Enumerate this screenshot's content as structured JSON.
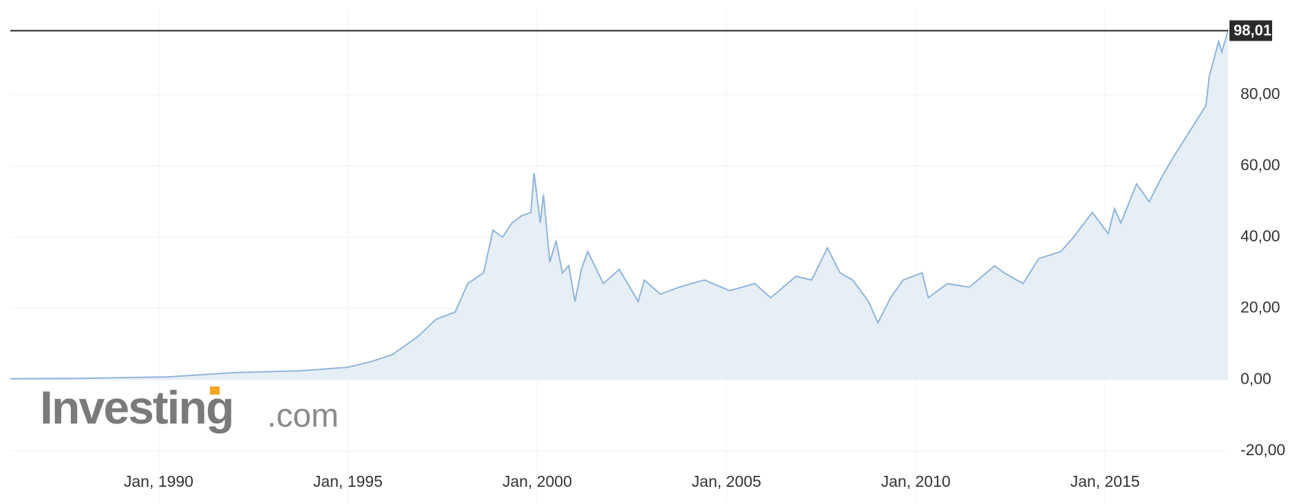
{
  "chart_data": {
    "type": "area",
    "color": "#8fb4d9",
    "fill": "#e6eef6",
    "grid": true,
    "x": [
      "1986-02",
      "1988-01",
      "1990-04",
      "1992-01",
      "1993-10",
      "1995-01",
      "1995-08",
      "1996-03",
      "1996-11",
      "1997-05",
      "1997-11",
      "1998-03",
      "1998-08",
      "1998-11",
      "1999-02",
      "1999-05",
      "1999-08",
      "1999-11",
      "1999-12",
      "2000-02",
      "2000-03",
      "2000-05",
      "2000-07",
      "2000-09",
      "2000-11",
      "2001-01",
      "2001-03",
      "2001-05",
      "2001-10",
      "2002-03",
      "2002-09",
      "2002-11",
      "2003-04",
      "2003-10",
      "2004-06",
      "2005-02",
      "2005-10",
      "2006-03",
      "2006-11",
      "2007-04",
      "2007-09",
      "2008-01",
      "2008-05",
      "2008-10",
      "2009-01",
      "2009-05",
      "2009-09",
      "2010-03",
      "2010-05",
      "2010-11",
      "2011-06",
      "2012-02",
      "2012-05",
      "2012-11",
      "2013-04",
      "2013-11",
      "2014-03",
      "2014-09",
      "2015-02",
      "2015-04",
      "2015-06",
      "2015-11",
      "2016-03",
      "2016-07",
      "2016-11",
      "2017-04",
      "2017-09",
      "2017-10",
      "2018-01",
      "2018-02",
      "2018-04"
    ],
    "values": [
      0.3,
      0.4,
      0.8,
      2,
      2.5,
      3.5,
      5,
      7,
      12,
      17,
      19,
      27,
      30,
      42,
      40,
      44,
      46,
      47,
      58,
      44,
      52,
      33,
      39,
      30,
      32,
      22,
      31,
      36,
      27,
      31,
      22,
      28,
      24,
      26,
      28,
      25,
      27,
      23,
      29,
      28,
      37,
      30,
      28,
      22,
      16,
      23,
      28,
      30,
      23,
      27,
      26,
      32,
      30,
      27,
      34,
      36,
      40,
      47,
      41,
      48,
      44,
      55,
      50,
      57,
      63,
      70,
      77,
      85,
      95,
      92,
      98.01
    ],
    "last_value": {
      "value": 98.01,
      "label": "98,01"
    },
    "xlim": [
      "1986-02",
      "2018-04"
    ],
    "xticks": [
      {
        "value": "1990-01",
        "label": "Jan, 1990"
      },
      {
        "value": "1995-01",
        "label": "Jan, 1995"
      },
      {
        "value": "2000-01",
        "label": "Jan, 2000"
      },
      {
        "value": "2005-01",
        "label": "Jan, 2005"
      },
      {
        "value": "2010-01",
        "label": "Jan, 2010"
      },
      {
        "value": "2015-01",
        "label": "Jan, 2015"
      }
    ],
    "ylim": [
      -34.9,
      104.3
    ],
    "yticks": [
      {
        "value": -20,
        "label": "-20,00"
      },
      {
        "value": 0,
        "label": "0,00"
      },
      {
        "value": 20,
        "label": "20,00"
      },
      {
        "value": 40,
        "label": "40,00"
      },
      {
        "value": 60,
        "label": "60,00"
      },
      {
        "value": 80,
        "label": "80,00"
      }
    ],
    "watermark": {
      "brand": "Investing",
      "suffix": ".com"
    }
  }
}
